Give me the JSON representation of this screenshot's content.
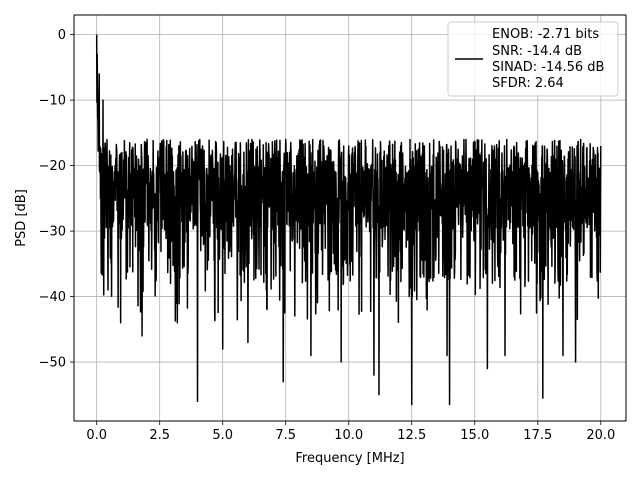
{
  "chart_data": {
    "type": "line",
    "title": "",
    "xlabel": "Frequency [MHz]",
    "ylabel": "PSD [dB]",
    "xlim": [
      -0.9,
      21.0
    ],
    "ylim": [
      -59.0,
      3.0
    ],
    "xticks": [
      0.0,
      2.5,
      5.0,
      7.5,
      10.0,
      12.5,
      15.0,
      17.5,
      20.0
    ],
    "xtick_labels": [
      "0.0",
      "2.5",
      "5.0",
      "7.5",
      "10.0",
      "12.5",
      "15.0",
      "17.5",
      "20.0"
    ],
    "yticks": [
      0,
      -10,
      -20,
      -30,
      -40,
      -50
    ],
    "ytick_labels": [
      "0",
      "−10",
      "−20",
      "−30",
      "−40",
      "−50"
    ],
    "grid": true,
    "legend_position": "upper right",
    "legend_lines": [
      "ENOB: -2.71 bits",
      "SNR: -14.4 dB",
      "SINAD: -14.56 dB",
      "SFDR: 2.64"
    ],
    "series": [
      {
        "color": "#000000",
        "x_start": 0.0,
        "x_end": 20.0,
        "x_step": 0.01,
        "description_note": "noise floor approx -16 to -45 dB with DC peak at 0 dB",
        "values": [
          [
            0.0,
            0.0
          ],
          [
            0.02,
            -3.0
          ],
          [
            0.05,
            -13.0
          ],
          [
            0.1,
            -6.0
          ],
          [
            0.15,
            -25.0
          ],
          [
            0.25,
            -10.0
          ],
          [
            0.45,
            -39.0
          ],
          [
            0.5,
            -20.0
          ],
          [
            0.95,
            -44.0
          ],
          [
            1.0,
            -18.0
          ],
          [
            1.8,
            -46.0
          ],
          [
            2.0,
            -16.0
          ],
          [
            3.2,
            -44.0
          ],
          [
            4.0,
            -56.0
          ],
          [
            4.2,
            -17.0
          ],
          [
            5.0,
            -48.0
          ],
          [
            6.0,
            -47.0
          ],
          [
            7.4,
            -53.0
          ],
          [
            7.5,
            -16.0
          ],
          [
            8.5,
            -49.0
          ],
          [
            9.7,
            -50.0
          ],
          [
            10.0,
            -17.0
          ],
          [
            11.0,
            -52.0
          ],
          [
            11.2,
            -55.0
          ],
          [
            12.5,
            -56.5
          ],
          [
            13.0,
            -17.0
          ],
          [
            13.9,
            -49.0
          ],
          [
            14.0,
            -56.5
          ],
          [
            15.5,
            -51.0
          ],
          [
            16.2,
            -49.0
          ],
          [
            17.7,
            -55.5
          ],
          [
            18.5,
            -49.0
          ],
          [
            19.0,
            -50.0
          ],
          [
            20.0,
            -17.0
          ]
        ]
      }
    ]
  }
}
